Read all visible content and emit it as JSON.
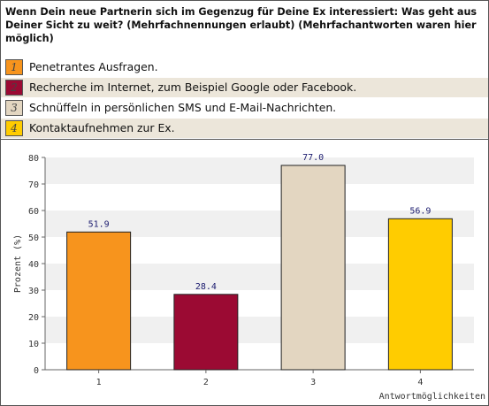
{
  "question": "Wenn Dein neue Partnerin sich im Gegenzug für Deine Ex interessiert: Was geht aus Deiner Sicht zu weit? (Mehrfachnennungen erlaubt) (Mehrfachantworten waren hier möglich)",
  "legend": [
    {
      "number": "1",
      "label": "Penetrantes Ausfragen.",
      "color": "#f7941d"
    },
    {
      "number": "2",
      "label": "Recherche im Internet, zum Beispiel Google oder Facebook.",
      "color": "#9b0a33"
    },
    {
      "number": "3",
      "label": "Schnüffeln in persönlichen SMS und E-Mail-Nachrichten.",
      "color": "#e3d6c1"
    },
    {
      "number": "4",
      "label": "Kontaktaufnehmen zur Ex.",
      "color": "#ffcc00"
    }
  ],
  "chart_data": {
    "type": "bar",
    "categories": [
      "1",
      "2",
      "3",
      "4"
    ],
    "values": [
      51.9,
      28.4,
      77.0,
      56.9
    ],
    "value_labels": [
      "51.9",
      "28.4",
      "77.0",
      "56.9"
    ],
    "colors": [
      "#f7941d",
      "#9b0a33",
      "#e3d6c1",
      "#ffcc00"
    ],
    "ylabel": "Prozent (%)",
    "xlabel": "Antwortmöglichkeiten",
    "ylim": [
      0,
      80
    ],
    "yticks": [
      "0",
      "10",
      "20",
      "30",
      "40",
      "50",
      "60",
      "70",
      "80"
    ],
    "grid": true
  }
}
